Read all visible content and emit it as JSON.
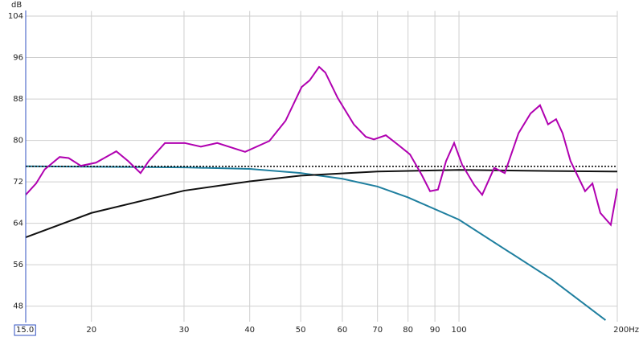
{
  "chart_data": {
    "type": "line",
    "y_label": "dB",
    "xscale": "log",
    "xlim": [
      15,
      200
    ],
    "ylim": [
      45,
      105
    ],
    "xticks": [
      {
        "value": 15,
        "label": "15.0"
      },
      20,
      30,
      40,
      50,
      60,
      70,
      80,
      90,
      100,
      {
        "value": 200,
        "label": "200Hz"
      }
    ],
    "yticks": [
      48,
      56,
      64,
      72,
      80,
      88,
      96,
      104
    ],
    "grid": true,
    "series": [
      {
        "color": "#1f7f9f",
        "style": "solid",
        "x": [
          15,
          30,
          40,
          50,
          60,
          70,
          80,
          100,
          150,
          190
        ],
        "values": [
          75,
          74.8,
          74.5,
          73.7,
          72.6,
          71.1,
          69,
          64.7,
          53.2,
          45.3
        ]
      },
      {
        "color": "#111111",
        "style": "solid",
        "x": [
          15,
          20,
          30,
          40,
          50,
          70,
          100,
          150,
          200
        ],
        "values": [
          61.3,
          66,
          70.3,
          72.1,
          73.2,
          74,
          74.3,
          74.1,
          74
        ]
      },
      {
        "color": "#111111",
        "style": "dotted",
        "x": [
          15,
          200
        ],
        "values": [
          75,
          75
        ]
      },
      {
        "color": "#b000b0",
        "style": "solid",
        "x": [
          15,
          15.7,
          16.3,
          17.4,
          18.1,
          19.1,
          20.4,
          22.3,
          23.5,
          24.8,
          25.7,
          27.6,
          30.1,
          32.3,
          34.7,
          39.2,
          43.6,
          46.8,
          50.2,
          52,
          54.2,
          55.7,
          58.8,
          63.1,
          66.5,
          68.9,
          72.6,
          76.5,
          80.7,
          85,
          88.1,
          91.2,
          94.5,
          97.9,
          101.4,
          106.9,
          110.7,
          116.7,
          122.2,
          129.8,
          136.8,
          142.6,
          147.7,
          153,
          157.4,
          163,
          173.7,
          179.4,
          185.7,
          194.4,
          200
        ],
        "values": [
          69.5,
          71.7,
          74.4,
          76.8,
          76.6,
          75.1,
          75.7,
          77.9,
          76,
          73.7,
          76,
          79.5,
          79.5,
          78.8,
          79.5,
          77.8,
          79.9,
          83.8,
          90.3,
          91.6,
          94.2,
          93.1,
          88.2,
          83.1,
          80.7,
          80.2,
          81,
          79.2,
          77.3,
          73.3,
          70.2,
          70.5,
          76,
          79.5,
          75.3,
          71.4,
          69.5,
          74.7,
          73.7,
          81.4,
          85.2,
          86.8,
          83.1,
          84.1,
          81.4,
          76,
          70.2,
          71.7,
          66,
          63.7,
          70.7
        ]
      }
    ]
  }
}
